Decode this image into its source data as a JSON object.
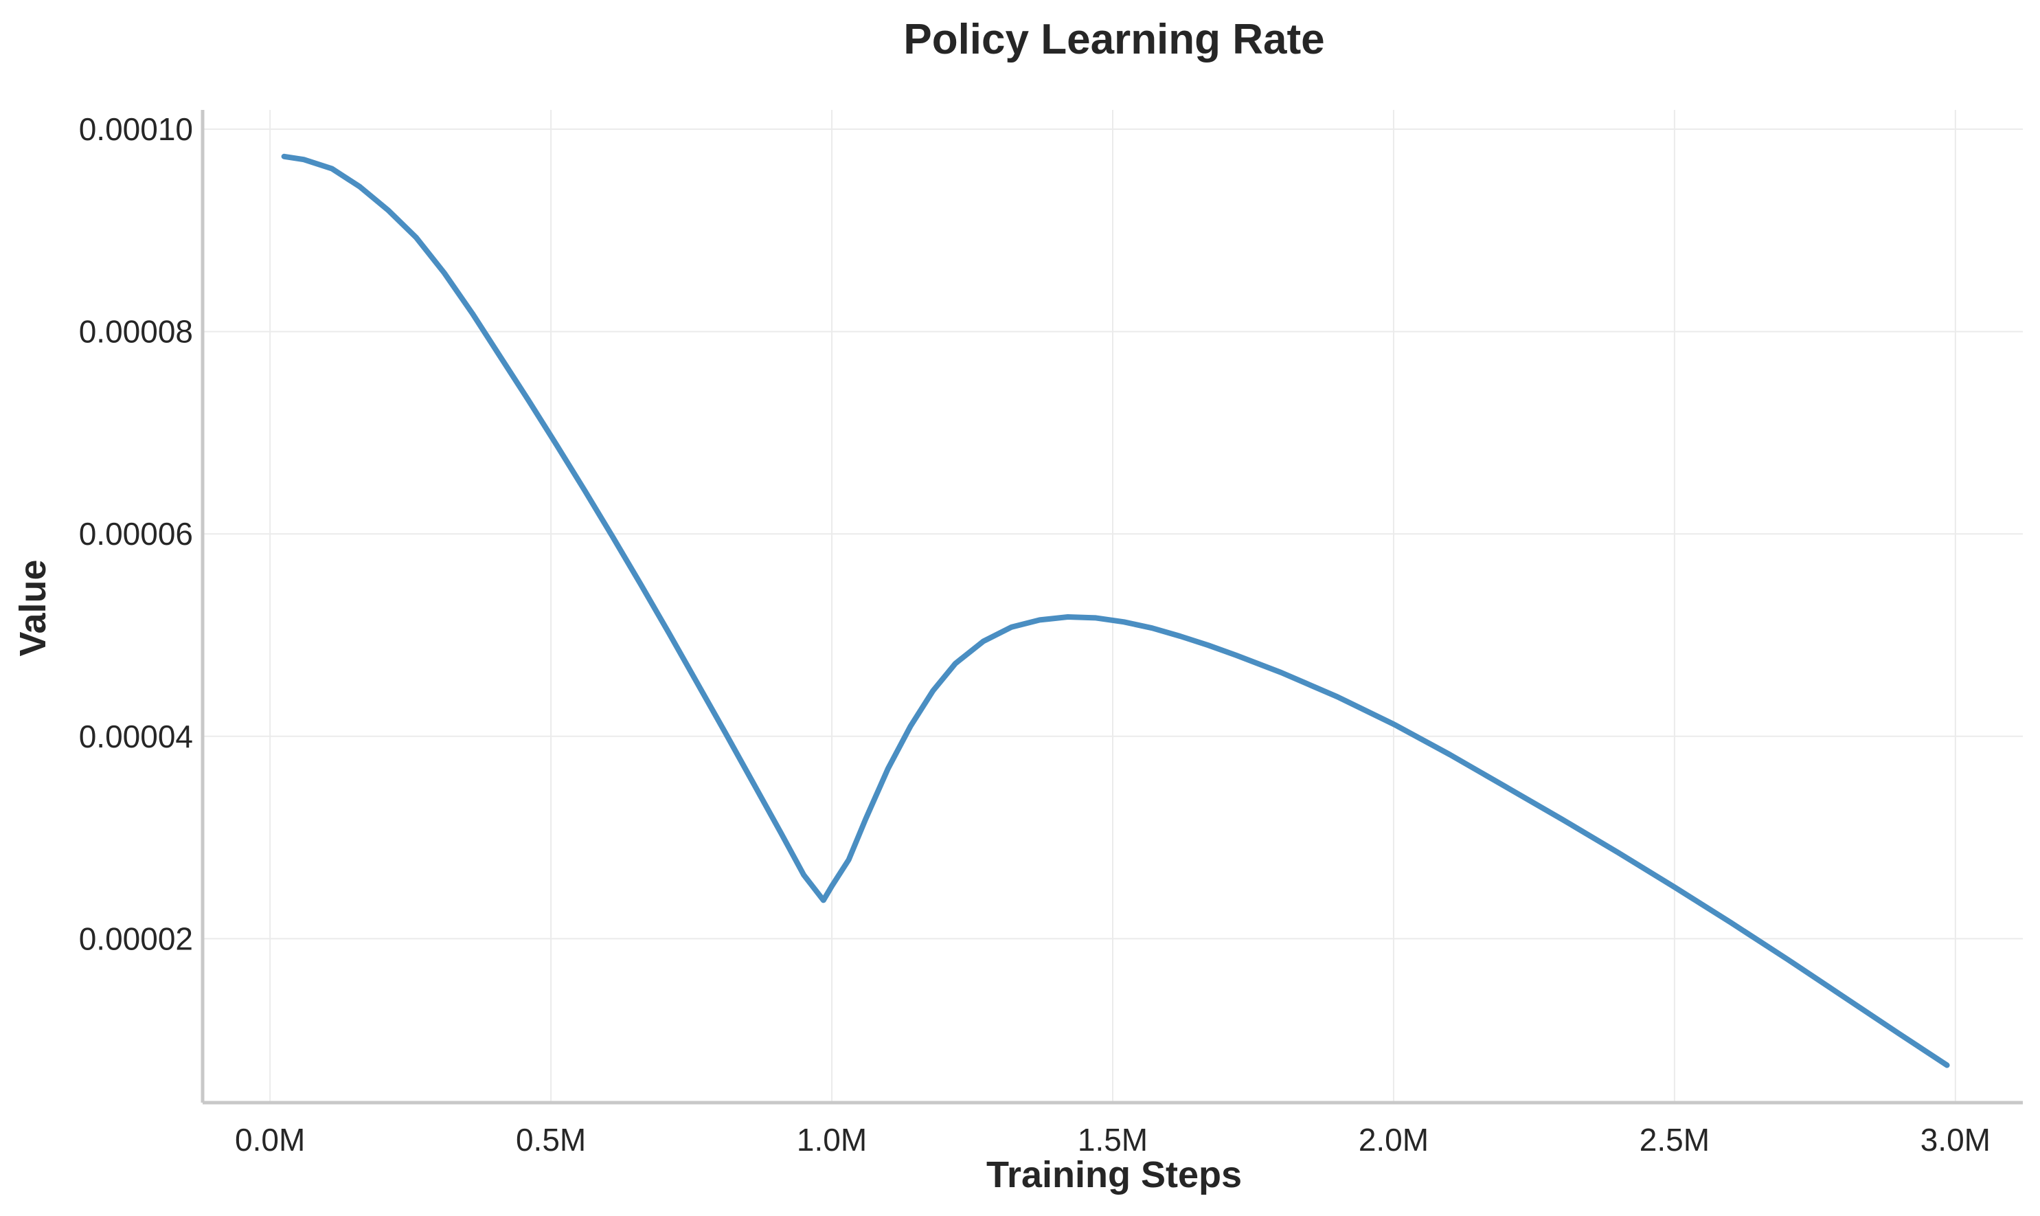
{
  "chart_data": {
    "type": "line",
    "title": "Policy Learning Rate",
    "xlabel": "Training Steps",
    "ylabel": "Value",
    "xlim": [
      -120000,
      3120000
    ],
    "ylim": [
      3.8e-06,
      0.0001019
    ],
    "xticks": [
      0,
      500000,
      1000000,
      1500000,
      2000000,
      2500000,
      3000000
    ],
    "xtick_labels": [
      "0.0M",
      "0.5M",
      "1.0M",
      "1.5M",
      "2.0M",
      "2.5M",
      "3.0M"
    ],
    "yticks": [
      2e-05,
      4e-05,
      6e-05,
      8e-05,
      0.0001
    ],
    "ytick_labels": [
      "0.00002",
      "0.00004",
      "0.00006",
      "0.00008",
      "0.00010"
    ],
    "grid": true,
    "legend": "none",
    "series": [
      {
        "color": "#4a8ec2",
        "x": [
          25000,
          60000,
          110000,
          160000,
          210000,
          260000,
          310000,
          360000,
          410000,
          460000,
          510000,
          560000,
          610000,
          660000,
          710000,
          760000,
          810000,
          860000,
          910000,
          950000,
          985000,
          1000000,
          1030000,
          1060000,
          1100000,
          1140000,
          1180000,
          1220000,
          1270000,
          1320000,
          1370000,
          1420000,
          1470000,
          1520000,
          1570000,
          1620000,
          1670000,
          1720000,
          1800000,
          1900000,
          2000000,
          2100000,
          2200000,
          2300000,
          2400000,
          2500000,
          2600000,
          2700000,
          2800000,
          2900000,
          2985000
        ],
        "y": [
          9.73e-05,
          9.7e-05,
          9.61e-05,
          9.43e-05,
          9.2e-05,
          8.93e-05,
          8.58e-05,
          8.18e-05,
          7.75e-05,
          7.32e-05,
          6.88e-05,
          6.43e-05,
          5.97e-05,
          5.5e-05,
          5.02e-05,
          4.53e-05,
          4.04e-05,
          3.54e-05,
          3.04e-05,
          2.63e-05,
          2.38e-05,
          2.52e-05,
          2.78e-05,
          3.18e-05,
          3.68e-05,
          4.1e-05,
          4.45e-05,
          4.72e-05,
          4.94e-05,
          5.08e-05,
          5.15e-05,
          5.18e-05,
          5.17e-05,
          5.13e-05,
          5.07e-05,
          4.99e-05,
          4.9e-05,
          4.8e-05,
          4.63e-05,
          4.39e-05,
          4.12e-05,
          3.82e-05,
          3.5e-05,
          3.18e-05,
          2.85e-05,
          2.51e-05,
          2.16e-05,
          1.8e-05,
          1.43e-05,
          1.06e-05,
          7.5e-06
        ]
      }
    ]
  }
}
